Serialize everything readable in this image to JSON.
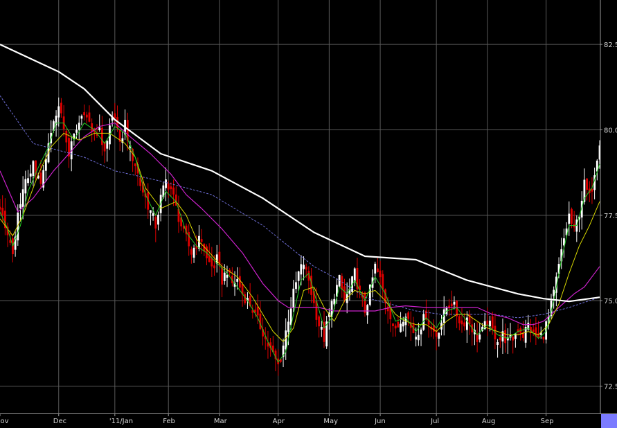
{
  "chart_data": {
    "type": "candlestick",
    "title": "",
    "xlabel": "",
    "ylabel": "",
    "ylim": [
      71.7,
      83.8
    ],
    "y_ticks": [
      72.5,
      75.0,
      77.5,
      80.0,
      82.5
    ],
    "y_tick_labels": [
      "72.5",
      "75.0",
      "77.5",
      "80.0",
      "82.5"
    ],
    "x_ticks": [
      {
        "day": -23,
        "label": "Nov"
      },
      {
        "day": 0,
        "label": "Dec"
      },
      {
        "day": 22,
        "label": "'11/Jan"
      },
      {
        "day": 43,
        "label": "Feb"
      },
      {
        "day": 63,
        "label": "Mar"
      },
      {
        "day": 86,
        "label": "Apr"
      },
      {
        "day": 106,
        "label": "May"
      },
      {
        "day": 126,
        "label": "Jun"
      },
      {
        "day": 148,
        "label": "Jul"
      },
      {
        "day": 168,
        "label": "Aug"
      },
      {
        "day": 191,
        "label": "Sep"
      }
    ],
    "x_range": [
      -23,
      212
    ],
    "grid": true,
    "up_color": "#ffffff",
    "down_color": "#e00000",
    "close_anchors": [
      [
        -23,
        77.8
      ],
      [
        -20,
        77.0
      ],
      [
        -18,
        76.2
      ],
      [
        -16,
        77.5
      ],
      [
        -13,
        78.5
      ],
      [
        -10,
        79.0
      ],
      [
        -7,
        78.3
      ],
      [
        -4,
        79.5
      ],
      [
        -2,
        80.2
      ],
      [
        0,
        80.8
      ],
      [
        2,
        80.0
      ],
      [
        4,
        79.3
      ],
      [
        6,
        79.8
      ],
      [
        8,
        80.2
      ],
      [
        10,
        80.6
      ],
      [
        12,
        80.2
      ],
      [
        14,
        79.8
      ],
      [
        16,
        80.1
      ],
      [
        18,
        79.2
      ],
      [
        20,
        80.0
      ],
      [
        22,
        80.5
      ],
      [
        24,
        79.5
      ],
      [
        26,
        80.2
      ],
      [
        28,
        79.4
      ],
      [
        30,
        79.0
      ],
      [
        32,
        78.4
      ],
      [
        34,
        78.0
      ],
      [
        36,
        77.6
      ],
      [
        38,
        77.2
      ],
      [
        40,
        78.0
      ],
      [
        42,
        78.5
      ],
      [
        44,
        78.3
      ],
      [
        46,
        77.7
      ],
      [
        48,
        77.2
      ],
      [
        50,
        76.8
      ],
      [
        52,
        76.4
      ],
      [
        54,
        76.7
      ],
      [
        56,
        76.8
      ],
      [
        58,
        76.2
      ],
      [
        60,
        76.0
      ],
      [
        62,
        76.2
      ],
      [
        64,
        75.6
      ],
      [
        66,
        75.9
      ],
      [
        68,
        75.5
      ],
      [
        70,
        75.6
      ],
      [
        72,
        75.2
      ],
      [
        74,
        75.0
      ],
      [
        76,
        74.8
      ],
      [
        78,
        74.4
      ],
      [
        80,
        74.1
      ],
      [
        82,
        73.7
      ],
      [
        84,
        73.4
      ],
      [
        86,
        73.1
      ],
      [
        88,
        73.7
      ],
      [
        90,
        74.5
      ],
      [
        92,
        75.2
      ],
      [
        94,
        75.8
      ],
      [
        96,
        76.1
      ],
      [
        98,
        75.6
      ],
      [
        100,
        74.9
      ],
      [
        102,
        74.3
      ],
      [
        104,
        73.9
      ],
      [
        106,
        74.6
      ],
      [
        108,
        75.2
      ],
      [
        110,
        75.6
      ],
      [
        112,
        75.0
      ],
      [
        114,
        75.3
      ],
      [
        116,
        75.8
      ],
      [
        118,
        75.2
      ],
      [
        120,
        74.7
      ],
      [
        122,
        75.3
      ],
      [
        124,
        76.0
      ],
      [
        126,
        75.6
      ],
      [
        128,
        75.0
      ],
      [
        130,
        74.6
      ],
      [
        132,
        74.1
      ],
      [
        134,
        74.4
      ],
      [
        136,
        74.7
      ],
      [
        138,
        74.2
      ],
      [
        140,
        74.0
      ],
      [
        142,
        74.3
      ],
      [
        144,
        74.6
      ],
      [
        146,
        74.2
      ],
      [
        148,
        74.0
      ],
      [
        150,
        74.4
      ],
      [
        152,
        74.8
      ],
      [
        154,
        75.0
      ],
      [
        156,
        74.6
      ],
      [
        158,
        74.3
      ],
      [
        160,
        74.5
      ],
      [
        162,
        74.2
      ],
      [
        164,
        73.9
      ],
      [
        166,
        74.1
      ],
      [
        168,
        74.4
      ],
      [
        170,
        74.1
      ],
      [
        172,
        73.9
      ],
      [
        174,
        74.0
      ],
      [
        176,
        73.8
      ],
      [
        178,
        73.9
      ],
      [
        180,
        74.2
      ],
      [
        182,
        74.0
      ],
      [
        184,
        74.3
      ],
      [
        186,
        74.0
      ],
      [
        188,
        73.9
      ],
      [
        190,
        74.1
      ],
      [
        192,
        74.5
      ],
      [
        194,
        75.2
      ],
      [
        196,
        76.0
      ],
      [
        198,
        76.8
      ],
      [
        200,
        77.5
      ],
      [
        202,
        77.0
      ],
      [
        204,
        77.6
      ],
      [
        206,
        78.4
      ],
      [
        208,
        78.0
      ],
      [
        210,
        78.8
      ],
      [
        212,
        79.7
      ]
    ],
    "sma_white": [
      [
        -23,
        82.5
      ],
      [
        0,
        81.7
      ],
      [
        10,
        81.2
      ],
      [
        22,
        80.3
      ],
      [
        40,
        79.3
      ],
      [
        60,
        78.8
      ],
      [
        80,
        78.0
      ],
      [
        100,
        77.0
      ],
      [
        120,
        76.3
      ],
      [
        140,
        76.2
      ],
      [
        160,
        75.6
      ],
      [
        170,
        75.4
      ],
      [
        180,
        75.2
      ],
      [
        190,
        75.06
      ],
      [
        200,
        74.98
      ],
      [
        212,
        75.1
      ]
    ],
    "sma_blue": [
      [
        -23,
        81.0
      ],
      [
        -10,
        79.6
      ],
      [
        0,
        79.4
      ],
      [
        10,
        79.2
      ],
      [
        22,
        78.8
      ],
      [
        40,
        78.5
      ],
      [
        60,
        78.1
      ],
      [
        80,
        77.2
      ],
      [
        100,
        76.0
      ],
      [
        110,
        75.6
      ],
      [
        120,
        75.1
      ],
      [
        130,
        74.9
      ],
      [
        140,
        74.7
      ],
      [
        150,
        74.6
      ],
      [
        160,
        74.6
      ],
      [
        170,
        74.6
      ],
      [
        180,
        74.5
      ],
      [
        190,
        74.6
      ],
      [
        200,
        74.8
      ],
      [
        212,
        75.1
      ]
    ],
    "sma_magenta": [
      [
        -23,
        78.8
      ],
      [
        -16,
        77.6
      ],
      [
        -10,
        78.0
      ],
      [
        -2,
        78.8
      ],
      [
        4,
        79.3
      ],
      [
        10,
        79.8
      ],
      [
        16,
        80.1
      ],
      [
        22,
        80.2
      ],
      [
        28,
        79.8
      ],
      [
        36,
        79.3
      ],
      [
        44,
        78.7
      ],
      [
        50,
        78.1
      ],
      [
        56,
        77.7
      ],
      [
        64,
        77.1
      ],
      [
        72,
        76.4
      ],
      [
        80,
        75.5
      ],
      [
        86,
        75.0
      ],
      [
        90,
        74.8
      ],
      [
        96,
        74.8
      ],
      [
        102,
        74.8
      ],
      [
        108,
        74.7
      ],
      [
        116,
        74.7
      ],
      [
        124,
        74.7
      ],
      [
        130,
        74.8
      ],
      [
        136,
        74.85
      ],
      [
        144,
        74.8
      ],
      [
        150,
        74.8
      ],
      [
        158,
        74.8
      ],
      [
        164,
        74.8
      ],
      [
        170,
        74.6
      ],
      [
        176,
        74.5
      ],
      [
        182,
        74.3
      ],
      [
        186,
        74.3
      ],
      [
        190,
        74.4
      ],
      [
        196,
        74.8
      ],
      [
        202,
        75.2
      ],
      [
        206,
        75.4
      ],
      [
        210,
        75.8
      ],
      [
        212,
        76.0
      ]
    ],
    "sma_yellow": [
      [
        -23,
        77.4
      ],
      [
        -18,
        76.9
      ],
      [
        -14,
        77.5
      ],
      [
        -8,
        78.7
      ],
      [
        -3,
        79.5
      ],
      [
        2,
        79.9
      ],
      [
        8,
        79.7
      ],
      [
        14,
        79.9
      ],
      [
        20,
        79.9
      ],
      [
        26,
        79.6
      ],
      [
        30,
        79.2
      ],
      [
        34,
        78.3
      ],
      [
        40,
        77.7
      ],
      [
        46,
        77.9
      ],
      [
        50,
        77.5
      ],
      [
        54,
        76.8
      ],
      [
        58,
        76.5
      ],
      [
        64,
        76.0
      ],
      [
        70,
        75.7
      ],
      [
        76,
        75.1
      ],
      [
        80,
        74.6
      ],
      [
        84,
        74.1
      ],
      [
        88,
        73.8
      ],
      [
        92,
        74.2
      ],
      [
        96,
        75.3
      ],
      [
        100,
        75.4
      ],
      [
        104,
        74.8
      ],
      [
        108,
        74.4
      ],
      [
        112,
        75.0
      ],
      [
        116,
        75.3
      ],
      [
        120,
        75.2
      ],
      [
        124,
        75.3
      ],
      [
        128,
        75.0
      ],
      [
        132,
        74.6
      ],
      [
        136,
        74.4
      ],
      [
        140,
        74.3
      ],
      [
        144,
        74.3
      ],
      [
        148,
        74.1
      ],
      [
        152,
        74.4
      ],
      [
        156,
        74.6
      ],
      [
        160,
        74.6
      ],
      [
        164,
        74.4
      ],
      [
        168,
        74.2
      ],
      [
        172,
        74.1
      ],
      [
        176,
        74.0
      ],
      [
        180,
        74.0
      ],
      [
        184,
        74.1
      ],
      [
        188,
        74.0
      ],
      [
        192,
        74.3
      ],
      [
        196,
        74.9
      ],
      [
        200,
        75.8
      ],
      [
        204,
        76.6
      ],
      [
        208,
        77.2
      ],
      [
        212,
        77.9
      ]
    ],
    "sma_green": [
      [
        -23,
        77.6
      ],
      [
        -20,
        77.1
      ],
      [
        -18,
        76.6
      ],
      [
        -15,
        77.2
      ],
      [
        -12,
        78.2
      ],
      [
        -8,
        78.9
      ],
      [
        -4,
        79.5
      ],
      [
        -1,
        80.2
      ],
      [
        2,
        80.2
      ],
      [
        6,
        79.7
      ],
      [
        10,
        80.2
      ],
      [
        14,
        80.0
      ],
      [
        18,
        79.6
      ],
      [
        22,
        80.1
      ],
      [
        26,
        79.9
      ],
      [
        30,
        79.2
      ],
      [
        34,
        78.1
      ],
      [
        38,
        77.5
      ],
      [
        42,
        78.2
      ],
      [
        46,
        77.9
      ],
      [
        50,
        77.0
      ],
      [
        54,
        76.6
      ],
      [
        58,
        76.4
      ],
      [
        62,
        76.1
      ],
      [
        66,
        75.8
      ],
      [
        70,
        75.4
      ],
      [
        74,
        75.0
      ],
      [
        78,
        74.5
      ],
      [
        82,
        73.8
      ],
      [
        86,
        73.2
      ],
      [
        89,
        73.5
      ],
      [
        92,
        74.6
      ],
      [
        95,
        75.6
      ],
      [
        98,
        75.8
      ],
      [
        101,
        75.0
      ],
      [
        104,
        74.2
      ],
      [
        107,
        74.5
      ],
      [
        110,
        75.4
      ],
      [
        113,
        75.2
      ],
      [
        116,
        75.6
      ],
      [
        120,
        75.0
      ],
      [
        124,
        75.7
      ],
      [
        128,
        75.2
      ],
      [
        132,
        74.4
      ],
      [
        136,
        74.5
      ],
      [
        140,
        74.1
      ],
      [
        144,
        74.5
      ],
      [
        148,
        74.2
      ],
      [
        152,
        74.7
      ],
      [
        156,
        74.8
      ],
      [
        160,
        74.4
      ],
      [
        164,
        74.0
      ],
      [
        168,
        74.3
      ],
      [
        172,
        74.0
      ],
      [
        176,
        73.9
      ],
      [
        180,
        74.1
      ],
      [
        184,
        74.2
      ],
      [
        188,
        73.9
      ],
      [
        191,
        74.1
      ],
      [
        194,
        75.0
      ],
      [
        197,
        76.2
      ],
      [
        200,
        77.2
      ],
      [
        203,
        77.2
      ],
      [
        206,
        78.0
      ],
      [
        209,
        78.3
      ],
      [
        212,
        79.0
      ]
    ]
  }
}
